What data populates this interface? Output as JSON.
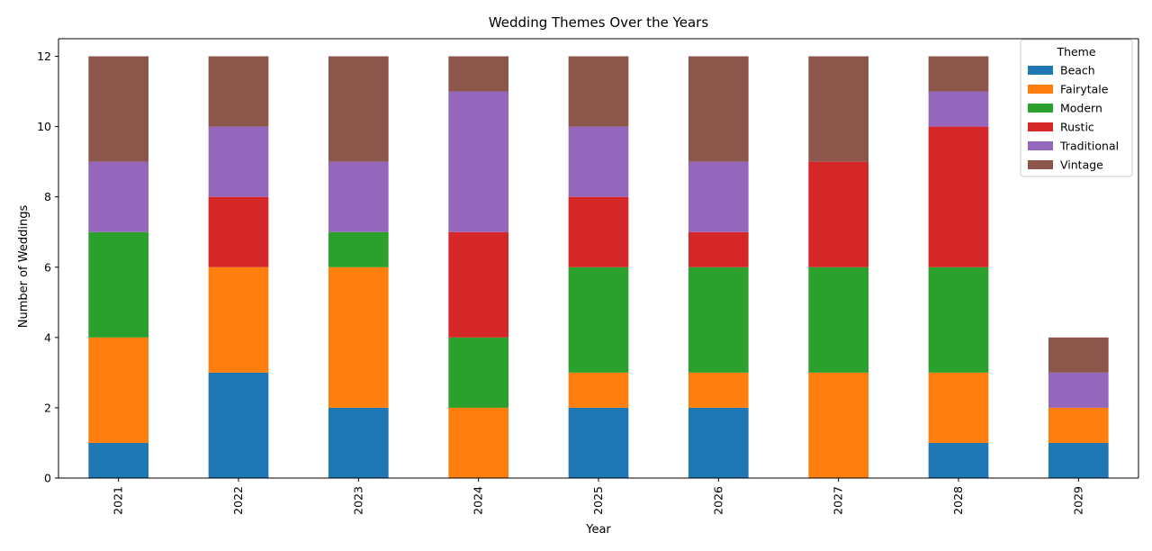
{
  "chart_data": {
    "type": "bar",
    "stacked": true,
    "title": "Wedding Themes Over the Years",
    "xlabel": "Year",
    "ylabel": "Number of Weddings",
    "categories": [
      "2021",
      "2022",
      "2023",
      "2024",
      "2025",
      "2026",
      "2027",
      "2028",
      "2029"
    ],
    "ylim": [
      0,
      12.5
    ],
    "yticks": [
      0,
      2,
      4,
      6,
      8,
      10,
      12
    ],
    "grid": false,
    "legend": {
      "title": "Theme",
      "position": "top-right"
    },
    "series": [
      {
        "name": "Beach",
        "color": "#1f77b4",
        "values": [
          1,
          3,
          2,
          0,
          2,
          2,
          0,
          1,
          1
        ]
      },
      {
        "name": "Fairytale",
        "color": "#ff7f0e",
        "values": [
          3,
          3,
          4,
          2,
          1,
          1,
          3,
          2,
          1
        ]
      },
      {
        "name": "Modern",
        "color": "#2ca02c",
        "values": [
          3,
          0,
          1,
          2,
          3,
          3,
          3,
          3,
          0
        ]
      },
      {
        "name": "Rustic",
        "color": "#d62728",
        "values": [
          0,
          2,
          0,
          3,
          2,
          1,
          3,
          4,
          0
        ]
      },
      {
        "name": "Traditional",
        "color": "#9467bd",
        "values": [
          2,
          2,
          2,
          4,
          2,
          2,
          0,
          1,
          1
        ]
      },
      {
        "name": "Vintage",
        "color": "#8c564b",
        "values": [
          3,
          2,
          3,
          1,
          2,
          3,
          3,
          1,
          1
        ]
      }
    ]
  }
}
